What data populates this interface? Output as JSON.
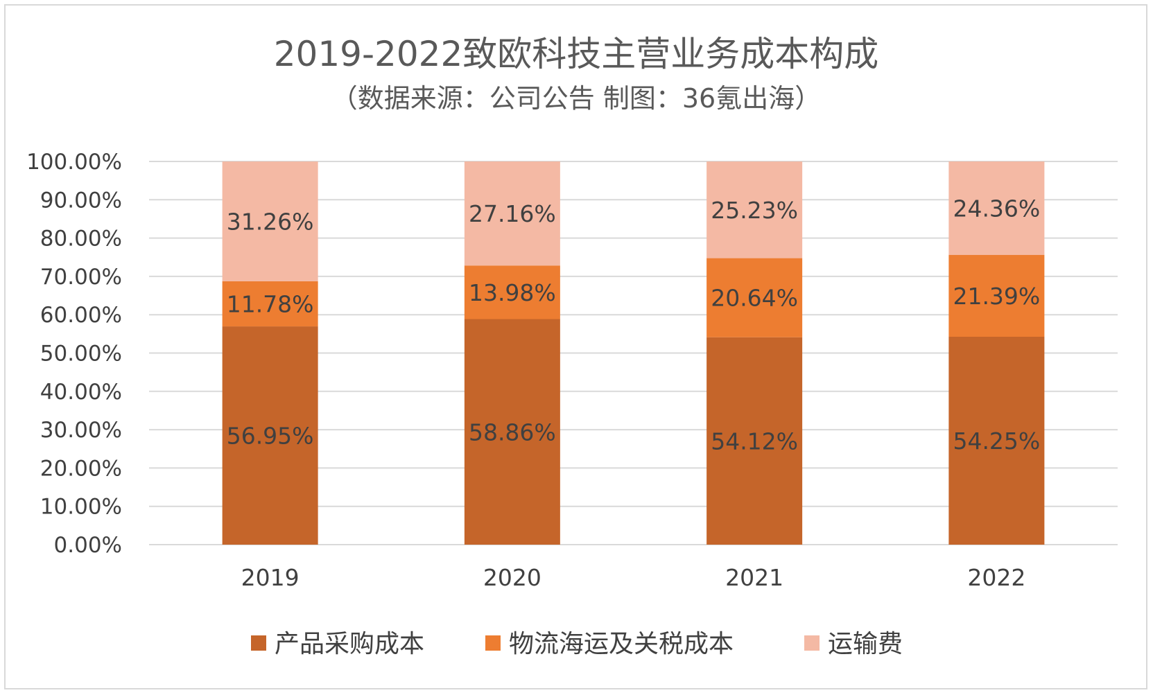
{
  "chart_data": {
    "type": "bar",
    "stacked": true,
    "title": "2019-2022致欧科技主营业务成本构成",
    "subtitle": "（数据来源：公司公告 制图：36氪出海）",
    "categories": [
      "2019",
      "2020",
      "2021",
      "2022"
    ],
    "series": [
      {
        "name": "产品采购成本",
        "color": "#c5652a",
        "values": [
          56.95,
          58.86,
          54.12,
          54.25
        ],
        "labels": [
          "56.95%",
          "58.86%",
          "54.12%",
          "54.25%"
        ]
      },
      {
        "name": "物流海运及关税成本",
        "color": "#ed7d31",
        "values": [
          11.78,
          13.98,
          20.64,
          21.39
        ],
        "labels": [
          "11.78%",
          "13.98%",
          "20.64%",
          "21.39%"
        ]
      },
      {
        "name": "运输费",
        "color": "#f4b9a4",
        "values": [
          31.26,
          27.16,
          25.23,
          24.36
        ],
        "labels": [
          "31.26%",
          "27.16%",
          "25.23%",
          "24.36%"
        ]
      }
    ],
    "ylim": [
      0,
      100
    ],
    "yticks": [
      "0.00%",
      "10.00%",
      "20.00%",
      "30.00%",
      "40.00%",
      "50.00%",
      "60.00%",
      "70.00%",
      "80.00%",
      "90.00%",
      "100.00%"
    ],
    "xlabel": "",
    "ylabel": "",
    "grid": true,
    "legend_position": "bottom"
  }
}
